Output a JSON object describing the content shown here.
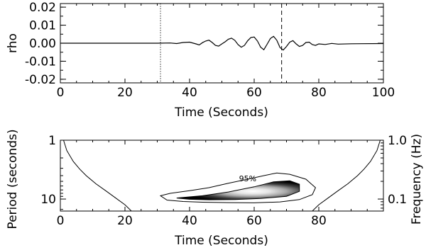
{
  "chart_data": [
    {
      "type": "line",
      "title": "",
      "xlabel": "Time (Seconds)",
      "ylabel": "rho",
      "xlim": [
        0,
        100
      ],
      "ylim": [
        -0.022,
        0.022
      ],
      "xticks": [
        "0",
        "20",
        "40",
        "60",
        "80",
        "100"
      ],
      "xtick_values": [
        0,
        20,
        40,
        60,
        80,
        100
      ],
      "yticks": [
        "-0.02",
        "-0.01",
        "0.00",
        "0.01",
        "0.02"
      ],
      "ytick_values": [
        -0.02,
        -0.01,
        0.0,
        0.01,
        0.02
      ],
      "vertical_markers": [
        {
          "x": 31,
          "style": "dotted"
        },
        {
          "x": 68.5,
          "style": "dashed"
        }
      ],
      "series": [
        {
          "x": [
            0,
            30,
            34,
            36,
            38,
            40,
            42,
            43,
            44,
            45,
            46,
            47,
            48,
            49,
            50,
            51,
            52,
            53,
            54,
            55,
            56,
            57,
            58,
            59,
            60,
            61,
            62,
            63,
            64,
            65,
            66,
            67,
            68,
            69,
            70,
            71,
            72,
            73,
            74,
            75,
            76,
            77,
            78,
            79,
            80,
            82,
            84,
            86,
            90,
            100
          ],
          "y": [
            0.0,
            0.0,
            0.0001,
            -0.0002,
            0.0004,
            0.0006,
            -0.0004,
            -0.001,
            0.0003,
            0.0012,
            0.0017,
            0.0004,
            -0.0012,
            -0.0016,
            -0.0004,
            0.0008,
            0.0022,
            0.0028,
            0.0016,
            -0.0008,
            -0.0022,
            -0.0012,
            0.0014,
            0.0032,
            0.0034,
            0.0012,
            -0.0022,
            -0.0036,
            -0.0006,
            0.0026,
            0.0038,
            0.0016,
            -0.0024,
            -0.0038,
            -0.0018,
            0.0006,
            0.0014,
            -0.0004,
            -0.0018,
            -0.0012,
            0.0004,
            0.0006,
            -0.0008,
            -0.0012,
            -0.0004,
            -0.0007,
            -0.0001,
            -0.0005,
            -0.0003,
            -0.0002
          ]
        }
      ]
    },
    {
      "type": "heatmap",
      "title": "",
      "xlabel": "Time (Seconds)",
      "ylabel": "Period (seconds)",
      "y2label": "Frequency (Hz)",
      "xlim": [
        0,
        100
      ],
      "ylim": [
        1,
        16
      ],
      "yscale": "log",
      "xticks": [
        "0",
        "20",
        "40",
        "60",
        "80"
      ],
      "xtick_values": [
        0,
        20,
        40,
        60,
        80
      ],
      "yticks": [
        "1",
        "10"
      ],
      "ytick_values": [
        1,
        10
      ],
      "y2ticks": [
        "1.0",
        "0.1"
      ],
      "y2tick_values": [
        1.0,
        0.1
      ],
      "contour_label": "95%",
      "cone_of_influence": {
        "left_x": [
          1.0,
          2.0,
          4.0,
          6.0,
          8.0,
          11.0,
          14.0,
          17.0,
          20.0,
          22.0
        ],
        "left_period": [
          1.0,
          1.5,
          2.3,
          3.1,
          4.0,
          5.5,
          7.2,
          9.5,
          12.5,
          16.0
        ],
        "right_x": [
          78.0,
          80.0,
          83.0,
          86.0,
          89.0,
          92.0,
          94.0,
          96.0,
          98.0,
          99.0
        ],
        "right_period": [
          16.0,
          12.5,
          9.5,
          7.2,
          5.5,
          4.0,
          3.1,
          2.3,
          1.5,
          1.0
        ]
      },
      "significance_contour": {
        "x": [
          31,
          34,
          40,
          46,
          52,
          58,
          63,
          67,
          71,
          76,
          79,
          78,
          74,
          68,
          60,
          52,
          44,
          38,
          33,
          31
        ],
        "period": [
          8.8,
          8.0,
          7.2,
          6.4,
          5.4,
          4.6,
          4.0,
          3.6,
          3.8,
          4.6,
          6.4,
          8.4,
          10.2,
          11.2,
          11.6,
          11.5,
          11.3,
          11.0,
          10.4,
          8.8
        ]
      },
      "power_peak": {
        "x": 66,
        "period": 7.0
      }
    }
  ]
}
